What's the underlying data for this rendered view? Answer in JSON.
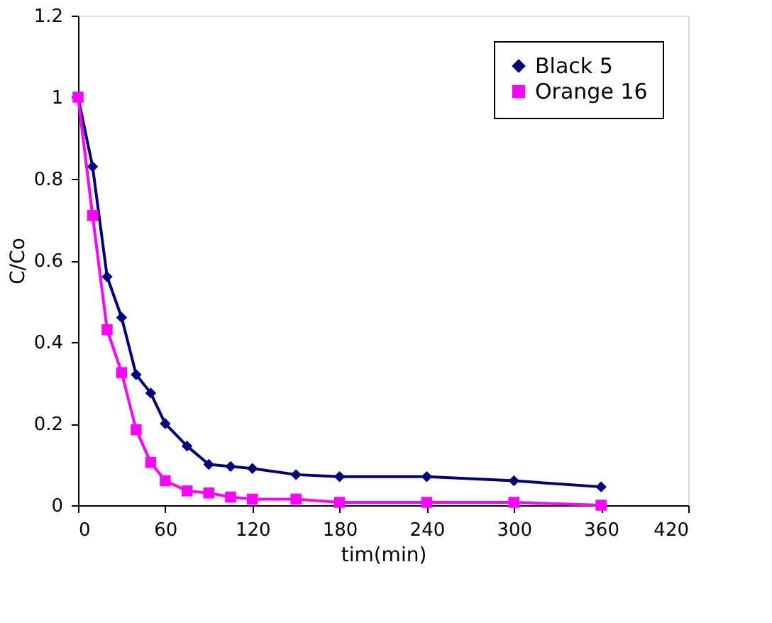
{
  "chart_data": {
    "type": "line",
    "xlabel": "tim(min)",
    "ylabel": "C/Co",
    "x": [
      0,
      10,
      20,
      30,
      40,
      50,
      60,
      75,
      90,
      105,
      120,
      150,
      180,
      240,
      300,
      360
    ],
    "series": [
      {
        "name": "Black 5",
        "color": "#000080",
        "marker": "diamond",
        "values": [
          1,
          0.83,
          0.56,
          0.46,
          0.32,
          0.275,
          0.2,
          0.145,
          0.1,
          0.095,
          0.09,
          0.075,
          0.07,
          0.07,
          0.06,
          0.045
        ]
      },
      {
        "name": "Orange 16",
        "color": "#ff00ff",
        "marker": "square",
        "values": [
          1,
          0.71,
          0.43,
          0.325,
          0.185,
          0.105,
          0.06,
          0.035,
          0.03,
          0.02,
          0.015,
          0.015,
          0.007,
          0.007,
          0.007,
          0.0
        ]
      }
    ],
    "xlim": [
      0,
      420
    ],
    "xticks": [
      0,
      60,
      120,
      180,
      240,
      300,
      360,
      420
    ],
    "ylim": [
      0,
      1.2
    ],
    "yticks": [
      0,
      0.2,
      0.4,
      0.6,
      0.8,
      1,
      1.2
    ],
    "grid": false,
    "legend": "top right",
    "line_style": "solid"
  }
}
